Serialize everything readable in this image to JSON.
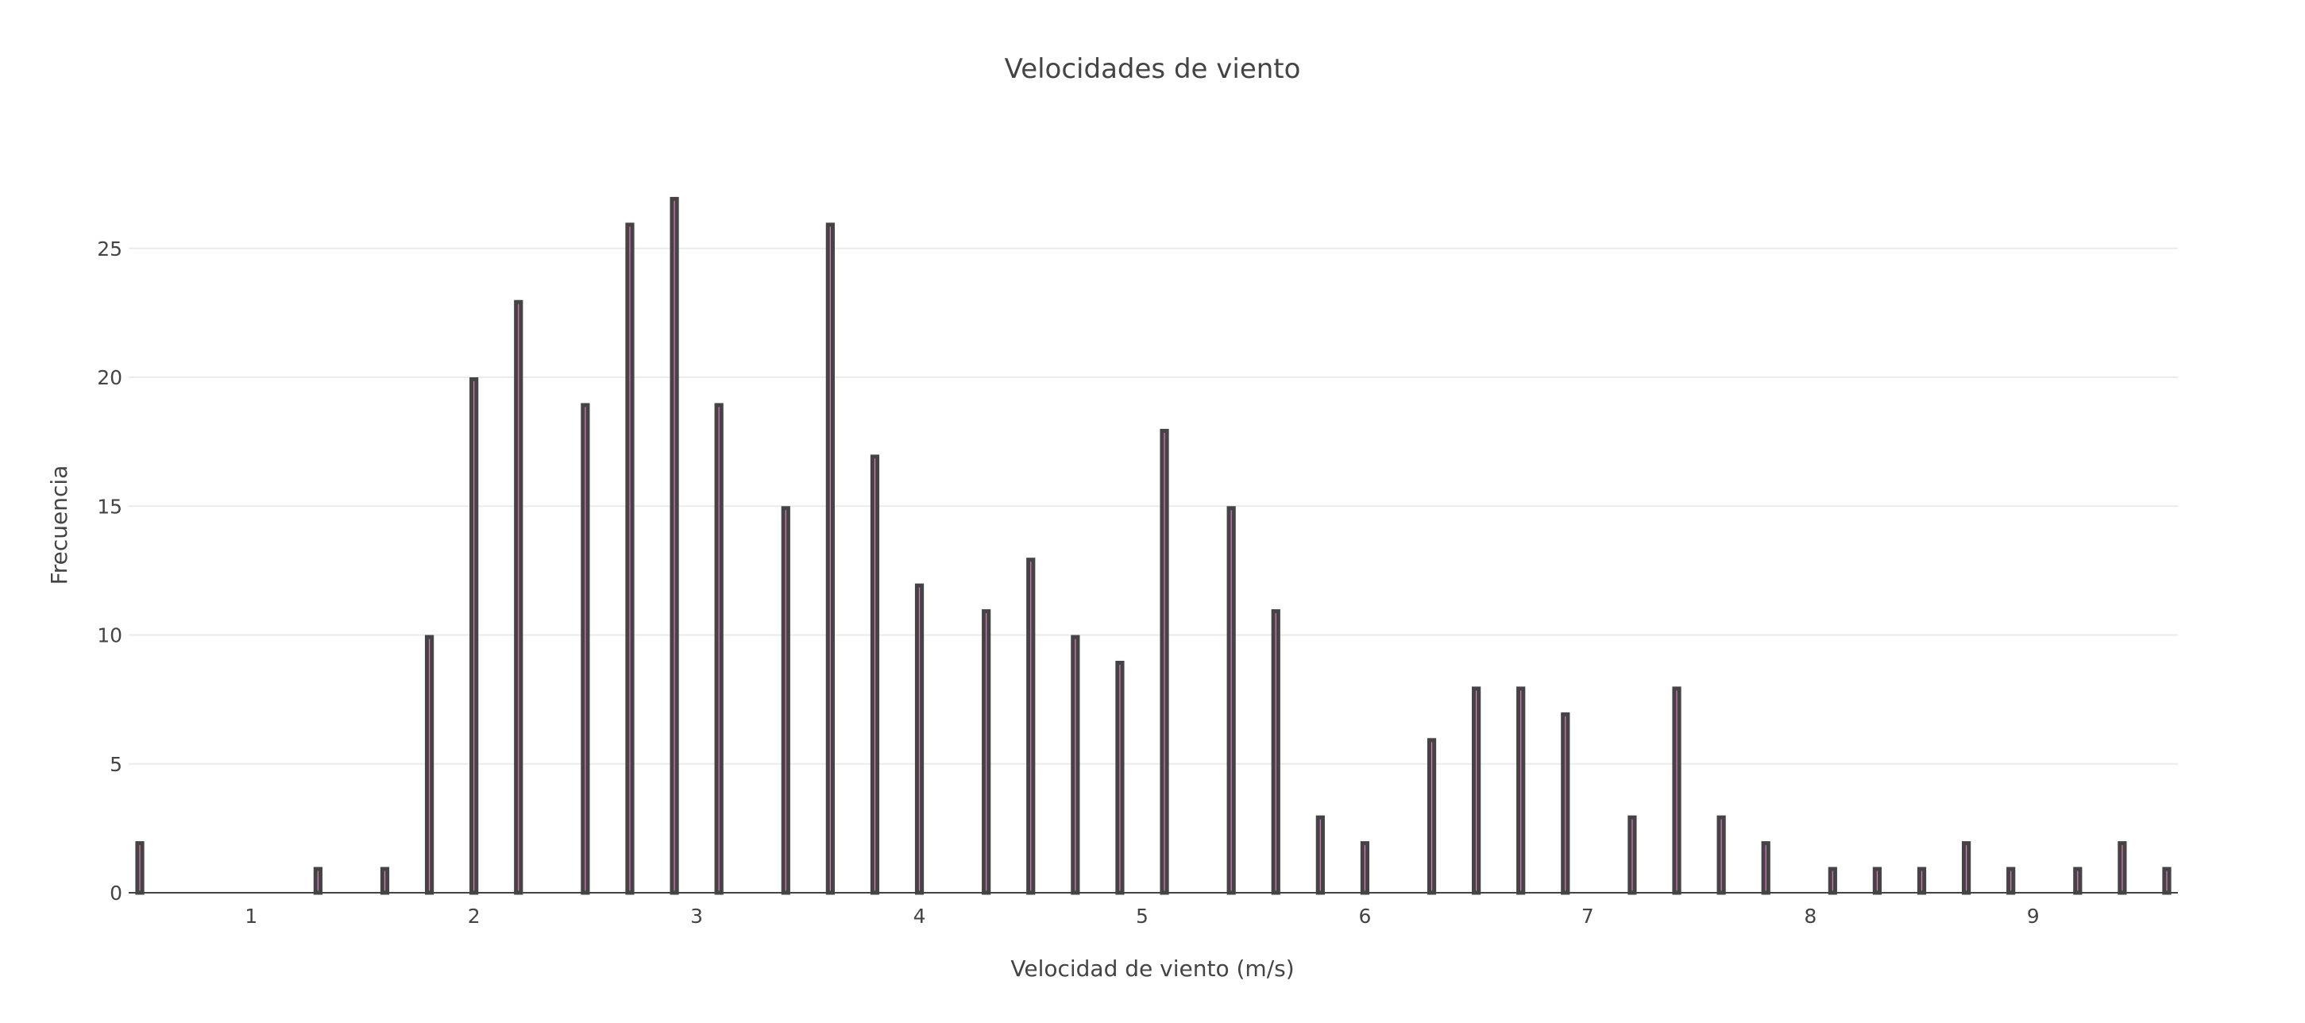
{
  "chart_data": {
    "type": "bar",
    "title": "Velocidades de viento",
    "xlabel": "Velocidad de viento (m/s)",
    "ylabel": "Frecuencia",
    "xlim": [
      0.45,
      9.65
    ],
    "ylim": [
      0,
      28.6
    ],
    "xticks": [
      1,
      2,
      3,
      4,
      5,
      6,
      7,
      8,
      9
    ],
    "yticks": [
      0,
      5,
      10,
      15,
      20,
      25
    ],
    "grid": true,
    "legend": "none",
    "bar_color": "#E377C2",
    "bar_edge_color": "#444444",
    "bin_width": 0.1,
    "x": [
      0.5,
      1.3,
      1.6,
      1.8,
      2.0,
      2.2,
      2.5,
      2.7,
      2.9,
      3.1,
      3.4,
      3.6,
      3.8,
      4.0,
      4.3,
      4.5,
      4.7,
      4.9,
      5.1,
      5.4,
      5.6,
      5.8,
      6.0,
      6.3,
      6.5,
      6.7,
      6.9,
      7.2,
      7.4,
      7.6,
      7.8,
      8.1,
      8.3,
      8.5,
      8.7,
      8.9,
      9.2,
      9.4,
      9.6
    ],
    "values": [
      2,
      1,
      1,
      10,
      20,
      23,
      19,
      26,
      27,
      19,
      15,
      26,
      17,
      12,
      11,
      13,
      10,
      9,
      18,
      15,
      11,
      3,
      2,
      6,
      8,
      8,
      7,
      3,
      8,
      3,
      2,
      1,
      1,
      1,
      2,
      1,
      1,
      2,
      1
    ]
  }
}
